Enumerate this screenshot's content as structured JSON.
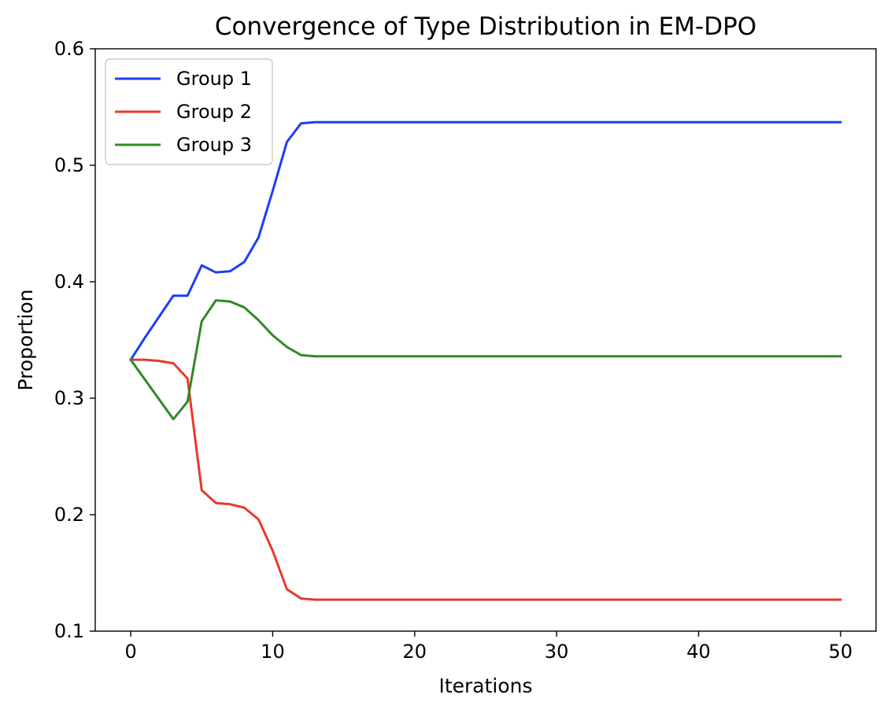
{
  "chart_data": {
    "type": "line",
    "title": "Convergence of Type Distribution in EM-DPO",
    "xlabel": "Iterations",
    "ylabel": "Proportion",
    "xlim": [
      -2.5,
      52.5
    ],
    "ylim": [
      0.1,
      0.6
    ],
    "xticks": [
      0,
      10,
      20,
      30,
      40,
      50
    ],
    "xtick_labels": [
      "0",
      "10",
      "20",
      "30",
      "40",
      "50"
    ],
    "yticks": [
      0.1,
      0.2,
      0.3,
      0.4,
      0.5,
      0.6
    ],
    "ytick_labels": [
      "0.1",
      "0.2",
      "0.3",
      "0.4",
      "0.5",
      "0.6"
    ],
    "grid": false,
    "legend_position": "upper-left",
    "x": [
      0,
      1,
      2,
      3,
      4,
      5,
      6,
      7,
      8,
      9,
      10,
      11,
      12,
      13,
      14,
      15,
      16,
      17,
      18,
      19,
      20,
      21,
      22,
      23,
      24,
      25,
      26,
      27,
      28,
      29,
      30,
      31,
      32,
      33,
      34,
      35,
      36,
      37,
      38,
      39,
      40,
      41,
      42,
      43,
      44,
      45,
      46,
      47,
      48,
      49,
      50
    ],
    "series": [
      {
        "name": "Group 1",
        "color": "#1f3df7",
        "values": [
          0.333,
          0.352,
          0.37,
          0.388,
          0.388,
          0.414,
          0.408,
          0.409,
          0.417,
          0.438,
          0.478,
          0.52,
          0.536,
          0.537,
          0.537,
          0.537,
          0.537,
          0.537,
          0.537,
          0.537,
          0.537,
          0.537,
          0.537,
          0.537,
          0.537,
          0.537,
          0.537,
          0.537,
          0.537,
          0.537,
          0.537,
          0.537,
          0.537,
          0.537,
          0.537,
          0.537,
          0.537,
          0.537,
          0.537,
          0.537,
          0.537,
          0.537,
          0.537,
          0.537,
          0.537,
          0.537,
          0.537,
          0.537,
          0.537,
          0.537,
          0.537
        ]
      },
      {
        "name": "Group 2",
        "color": "#e8392a",
        "values": [
          0.333,
          0.333,
          0.332,
          0.33,
          0.317,
          0.221,
          0.21,
          0.209,
          0.206,
          0.196,
          0.169,
          0.136,
          0.128,
          0.127,
          0.127,
          0.127,
          0.127,
          0.127,
          0.127,
          0.127,
          0.127,
          0.127,
          0.127,
          0.127,
          0.127,
          0.127,
          0.127,
          0.127,
          0.127,
          0.127,
          0.127,
          0.127,
          0.127,
          0.127,
          0.127,
          0.127,
          0.127,
          0.127,
          0.127,
          0.127,
          0.127,
          0.127,
          0.127,
          0.127,
          0.127,
          0.127,
          0.127,
          0.127,
          0.127,
          0.127,
          0.127
        ]
      },
      {
        "name": "Group 3",
        "color": "#2f8a26",
        "values": [
          0.333,
          0.316,
          0.299,
          0.282,
          0.297,
          0.366,
          0.384,
          0.383,
          0.378,
          0.367,
          0.354,
          0.344,
          0.337,
          0.336,
          0.336,
          0.336,
          0.336,
          0.336,
          0.336,
          0.336,
          0.336,
          0.336,
          0.336,
          0.336,
          0.336,
          0.336,
          0.336,
          0.336,
          0.336,
          0.336,
          0.336,
          0.336,
          0.336,
          0.336,
          0.336,
          0.336,
          0.336,
          0.336,
          0.336,
          0.336,
          0.336,
          0.336,
          0.336,
          0.336,
          0.336,
          0.336,
          0.336,
          0.336,
          0.336,
          0.336,
          0.336
        ]
      }
    ]
  }
}
